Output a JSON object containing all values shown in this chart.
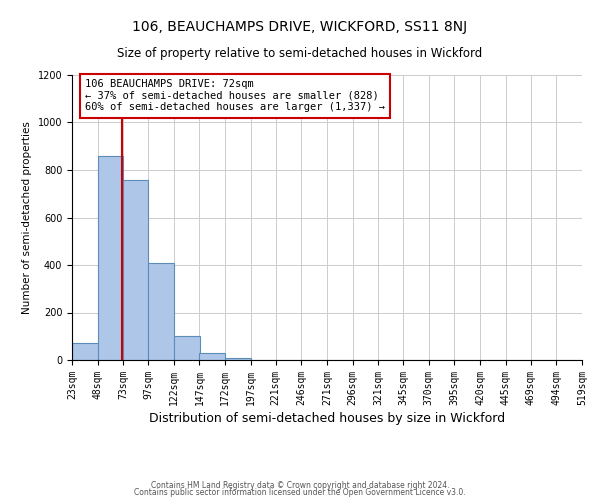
{
  "title": "106, BEAUCHAMPS DRIVE, WICKFORD, SS11 8NJ",
  "subtitle": "Size of property relative to semi-detached houses in Wickford",
  "xlabel": "Distribution of semi-detached houses by size in Wickford",
  "ylabel": "Number of semi-detached properties",
  "bin_edges": [
    23,
    48,
    73,
    97,
    122,
    147,
    172,
    197,
    221,
    246,
    271,
    296,
    321,
    345,
    370,
    395,
    420,
    445,
    469,
    494,
    519
  ],
  "bin_values": [
    70,
    860,
    760,
    410,
    100,
    28,
    8,
    0,
    0,
    0,
    0,
    0,
    0,
    0,
    0,
    0,
    0,
    0,
    0,
    0
  ],
  "bar_color": "#aec6e8",
  "bar_edge_color": "#5b8db8",
  "property_size": 72,
  "property_line_color": "#cc0000",
  "annotation_line1": "106 BEAUCHAMPS DRIVE: 72sqm",
  "annotation_line2": "← 37% of semi-detached houses are smaller (828)",
  "annotation_line3": "60% of semi-detached houses are larger (1,337) →",
  "annotation_box_color": "#ffffff",
  "annotation_box_edge_color": "#cc0000",
  "ylim": [
    0,
    1200
  ],
  "yticks": [
    0,
    200,
    400,
    600,
    800,
    1000,
    1200
  ],
  "tick_labels": [
    "23sqm",
    "48sqm",
    "73sqm",
    "97sqm",
    "122sqm",
    "147sqm",
    "172sqm",
    "197sqm",
    "221sqm",
    "246sqm",
    "271sqm",
    "296sqm",
    "321sqm",
    "345sqm",
    "370sqm",
    "395sqm",
    "420sqm",
    "445sqm",
    "469sqm",
    "494sqm",
    "519sqm"
  ],
  "footer_line1": "Contains HM Land Registry data © Crown copyright and database right 2024.",
  "footer_line2": "Contains public sector information licensed under the Open Government Licence v3.0.",
  "bg_color": "#ffffff",
  "grid_color": "#cccccc",
  "title_fontsize": 10,
  "subtitle_fontsize": 8.5,
  "xlabel_fontsize": 9,
  "ylabel_fontsize": 7.5,
  "tick_fontsize": 7,
  "annotation_fontsize": 7.5,
  "footer_fontsize": 5.5
}
